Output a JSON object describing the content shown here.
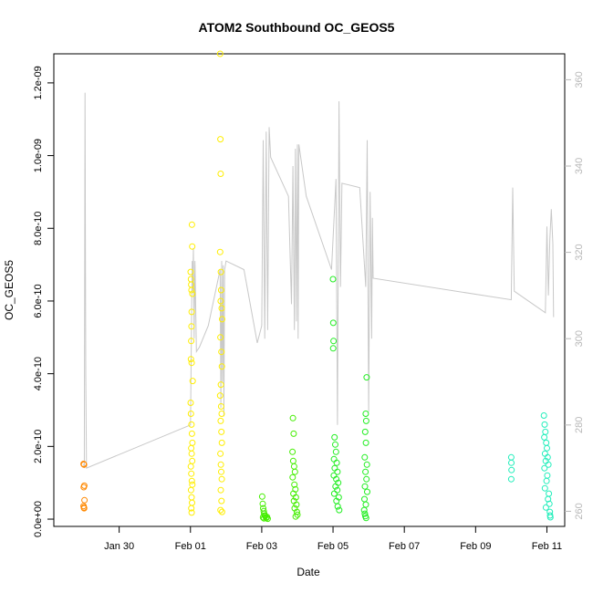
{
  "chart_data": {
    "type": "scatter",
    "title": "ATOM2 Southbound OC_GEOS5",
    "xlabel": "Date",
    "ylabel": "OC_GEOS5",
    "xlim": [
      "2018-01-28T04:00",
      "2018-02-11T12:00"
    ],
    "ylim": [
      -2e-11,
      1.28e-09
    ],
    "y2lim": [
      256.5,
      366
    ],
    "x_ticks": [
      {
        "label": "Jan 30",
        "value": "2018-01-30T00:00"
      },
      {
        "label": "Feb 01",
        "value": "2018-02-01T00:00"
      },
      {
        "label": "Feb 03",
        "value": "2018-02-03T00:00"
      },
      {
        "label": "Feb 05",
        "value": "2018-02-05T00:00"
      },
      {
        "label": "Feb 07",
        "value": "2018-02-07T00:00"
      },
      {
        "label": "Feb 09",
        "value": "2018-02-09T00:00"
      },
      {
        "label": "Feb 11",
        "value": "2018-02-11T00:00"
      }
    ],
    "y_ticks": [
      {
        "label": "0.0e+00",
        "value": 0
      },
      {
        "label": "2.0e-10",
        "value": 2e-10
      },
      {
        "label": "4.0e-10",
        "value": 4e-10
      },
      {
        "label": "6.0e-10",
        "value": 6e-10
      },
      {
        "label": "8.0e-10",
        "value": 8e-10
      },
      {
        "label": "1.0e-09",
        "value": 1e-09
      },
      {
        "label": "1.2e-09",
        "value": 1.2e-09
      }
    ],
    "y2_ticks": [
      {
        "label": "260",
        "value": 260
      },
      {
        "label": "280",
        "value": 280
      },
      {
        "label": "300",
        "value": 300
      },
      {
        "label": "320",
        "value": 320
      },
      {
        "label": "340",
        "value": 340
      },
      {
        "label": "360",
        "value": 360
      }
    ],
    "grid": false,
    "line_color": "#c8c8c8",
    "line_series": [
      [
        "2018-01-29T00:00",
        271
      ],
      [
        "2018-01-29T00:30",
        270
      ],
      [
        "2018-01-29T01:00",
        357
      ],
      [
        "2018-01-29T01:30",
        292
      ],
      [
        "2018-01-29T02:00",
        270
      ],
      [
        "2018-02-01T00:00",
        280
      ],
      [
        "2018-02-01T00:45",
        305
      ],
      [
        "2018-02-01T01:10",
        318
      ],
      [
        "2018-02-01T01:30",
        311
      ],
      [
        "2018-02-01T02:00",
        321
      ],
      [
        "2018-02-01T02:30",
        300
      ],
      [
        "2018-02-01T03:00",
        318
      ],
      [
        "2018-02-01T04:00",
        297
      ],
      [
        "2018-02-01T06:00",
        298
      ],
      [
        "2018-02-01T12:00",
        303
      ],
      [
        "2018-02-01T20:00",
        316
      ],
      [
        "2018-02-01T20:30",
        284
      ],
      [
        "2018-02-01T21:00",
        318
      ],
      [
        "2018-02-01T21:30",
        290
      ],
      [
        "2018-02-01T22:00",
        317
      ],
      [
        "2018-02-01T22:30",
        282
      ],
      [
        "2018-02-01T23:00",
        316
      ],
      [
        "2018-02-02T00:00",
        318
      ],
      [
        "2018-02-02T12:00",
        316
      ],
      [
        "2018-02-02T21:00",
        299
      ],
      [
        "2018-02-03T00:00",
        303
      ],
      [
        "2018-02-03T01:00",
        346
      ],
      [
        "2018-02-03T02:00",
        300
      ],
      [
        "2018-02-03T03:00",
        348
      ],
      [
        "2018-02-03T04:00",
        302
      ],
      [
        "2018-02-03T05:00",
        349
      ],
      [
        "2018-02-03T06:00",
        342
      ],
      [
        "2018-02-03T18:00",
        333
      ],
      [
        "2018-02-03T20:00",
        308
      ],
      [
        "2018-02-03T21:00",
        340
      ],
      [
        "2018-02-03T22:00",
        302
      ],
      [
        "2018-02-03T22:40",
        344
      ],
      [
        "2018-02-03T23:20",
        304
      ],
      [
        "2018-02-04T00:00",
        345
      ],
      [
        "2018-02-04T00:30",
        300
      ],
      [
        "2018-02-04T01:00",
        345
      ],
      [
        "2018-02-04T06:00",
        333
      ],
      [
        "2018-02-04T23:00",
        316
      ],
      [
        "2018-02-05T02:00",
        337
      ],
      [
        "2018-02-05T03:00",
        280
      ],
      [
        "2018-02-05T04:00",
        355
      ],
      [
        "2018-02-05T05:00",
        312
      ],
      [
        "2018-02-05T06:00",
        336
      ],
      [
        "2018-02-05T18:00",
        335
      ],
      [
        "2018-02-05T22:00",
        312
      ],
      [
        "2018-02-05T23:00",
        346
      ],
      [
        "2018-02-06T00:00",
        283
      ],
      [
        "2018-02-06T01:00",
        334
      ],
      [
        "2018-02-06T02:00",
        300
      ],
      [
        "2018-02-06T02:30",
        328
      ],
      [
        "2018-02-06T03:00",
        314
      ],
      [
        "2018-02-10T00:00",
        309
      ],
      [
        "2018-02-10T01:00",
        335
      ],
      [
        "2018-02-10T02:00",
        311
      ],
      [
        "2018-02-10T23:00",
        306
      ],
      [
        "2018-02-11T00:00",
        326
      ],
      [
        "2018-02-11T01:00",
        310
      ],
      [
        "2018-02-11T02:00",
        323
      ],
      [
        "2018-02-11T03:00",
        330
      ],
      [
        "2018-02-11T04:00",
        322
      ],
      [
        "2018-02-11T04:30",
        305
      ]
    ],
    "series": [
      {
        "color": "#ff8800",
        "points": [
          [
            "2018-01-29T00:00",
            1.52e-10
          ],
          [
            "2018-01-29T00:20",
            1.5e-10
          ],
          [
            "2018-01-29T00:30",
            9.2e-11
          ],
          [
            "2018-01-29T00:10",
            8.8e-11
          ],
          [
            "2018-01-29T00:40",
            5.2e-11
          ],
          [
            "2018-01-29T00:00",
            3.6e-11
          ],
          [
            "2018-01-29T00:15",
            3.2e-11
          ],
          [
            "2018-01-29T00:25",
            3e-11
          ]
        ]
      },
      {
        "color": "#ffee00",
        "points": [
          [
            "2018-02-01T00:10",
            6.8e-10
          ],
          [
            "2018-02-01T00:20",
            6.6e-10
          ],
          [
            "2018-02-01T00:30",
            6.45e-10
          ],
          [
            "2018-02-01T00:40",
            6.3e-10
          ],
          [
            "2018-02-01T01:00",
            8.1e-10
          ],
          [
            "2018-02-01T01:10",
            7.5e-10
          ],
          [
            "2018-02-01T01:20",
            6.2e-10
          ],
          [
            "2018-02-01T00:50",
            5.7e-10
          ],
          [
            "2018-02-01T00:40",
            5.3e-10
          ],
          [
            "2018-02-01T00:30",
            4.9e-10
          ],
          [
            "2018-02-01T00:20",
            4.4e-10
          ],
          [
            "2018-02-01T00:50",
            4.3e-10
          ],
          [
            "2018-02-01T01:30",
            3.8e-10
          ],
          [
            "2018-02-01T00:10",
            3.2e-10
          ],
          [
            "2018-02-01T00:20",
            2.9e-10
          ],
          [
            "2018-02-01T00:40",
            2.6e-10
          ],
          [
            "2018-02-01T01:00",
            2.35e-10
          ],
          [
            "2018-02-01T01:20",
            2.1e-10
          ],
          [
            "2018-02-01T00:30",
            1.95e-10
          ],
          [
            "2018-02-01T00:50",
            1.8e-10
          ],
          [
            "2018-02-01T01:10",
            1.6e-10
          ],
          [
            "2018-02-01T00:15",
            1.45e-10
          ],
          [
            "2018-02-01T00:35",
            1.25e-10
          ],
          [
            "2018-02-01T00:55",
            1.05e-10
          ],
          [
            "2018-02-01T01:15",
            9.5e-11
          ],
          [
            "2018-02-01T00:25",
            8e-11
          ],
          [
            "2018-02-01T00:45",
            6e-11
          ],
          [
            "2018-02-01T01:05",
            4.5e-11
          ],
          [
            "2018-02-01T00:35",
            3e-11
          ],
          [
            "2018-02-01T00:50",
            1.8e-11
          ],
          [
            "2018-02-01T20:00",
            1.28e-09
          ],
          [
            "2018-02-01T20:10",
            1.045e-09
          ],
          [
            "2018-02-01T20:20",
            9.5e-10
          ],
          [
            "2018-02-01T20:00",
            7.35e-10
          ],
          [
            "2018-02-01T20:30",
            6.8e-10
          ],
          [
            "2018-02-01T20:40",
            6.3e-10
          ],
          [
            "2018-02-01T20:20",
            6e-10
          ],
          [
            "2018-02-01T21:00",
            5.8e-10
          ],
          [
            "2018-02-01T21:20",
            5.5e-10
          ],
          [
            "2018-02-01T20:10",
            5e-10
          ],
          [
            "2018-02-01T20:50",
            4.6e-10
          ],
          [
            "2018-02-01T21:10",
            4.2e-10
          ],
          [
            "2018-02-01T20:30",
            3.7e-10
          ],
          [
            "2018-02-01T20:00",
            3.4e-10
          ],
          [
            "2018-02-01T20:40",
            3.1e-10
          ],
          [
            "2018-02-01T21:00",
            2.9e-10
          ],
          [
            "2018-02-01T20:20",
            2.7e-10
          ],
          [
            "2018-02-01T20:50",
            2.4e-10
          ],
          [
            "2018-02-01T21:10",
            2.1e-10
          ],
          [
            "2018-02-01T20:10",
            1.8e-10
          ],
          [
            "2018-02-01T20:30",
            1.5e-10
          ],
          [
            "2018-02-01T20:45",
            1.3e-10
          ],
          [
            "2018-02-01T21:05",
            1.1e-10
          ],
          [
            "2018-02-01T20:25",
            8e-11
          ],
          [
            "2018-02-01T20:55",
            5e-11
          ],
          [
            "2018-02-01T20:15",
            2.5e-11
          ],
          [
            "2018-02-01T21:15",
            2e-11
          ]
        ]
      },
      {
        "color": "#44ee00",
        "points": [
          [
            "2018-02-03T00:20",
            6.2e-11
          ],
          [
            "2018-02-03T00:40",
            4.2e-11
          ],
          [
            "2018-02-03T01:00",
            3e-11
          ],
          [
            "2018-02-03T01:20",
            2.2e-11
          ],
          [
            "2018-02-03T01:40",
            1.5e-11
          ],
          [
            "2018-02-03T02:00",
            1e-11
          ],
          [
            "2018-02-03T00:50",
            5e-12
          ],
          [
            "2018-02-03T01:30",
            2e-12
          ],
          [
            "2018-02-03T02:20",
            8e-12
          ],
          [
            "2018-02-03T03:00",
            3e-12
          ],
          [
            "2018-02-03T03:30",
            6e-12
          ],
          [
            "2018-02-03T04:00",
            1e-12
          ],
          [
            "2018-02-03T21:00",
            2.78e-10
          ],
          [
            "2018-02-03T21:30",
            2.35e-10
          ],
          [
            "2018-02-03T20:40",
            1.85e-10
          ],
          [
            "2018-02-03T21:10",
            1.6e-10
          ],
          [
            "2018-02-03T21:50",
            1.45e-10
          ],
          [
            "2018-02-03T22:20",
            1.3e-10
          ],
          [
            "2018-02-03T20:50",
            1.15e-10
          ],
          [
            "2018-02-03T22:00",
            9.5e-11
          ],
          [
            "2018-02-03T22:40",
            8.2e-11
          ],
          [
            "2018-02-03T21:20",
            7e-11
          ],
          [
            "2018-02-03T23:00",
            6e-11
          ],
          [
            "2018-02-03T21:40",
            5e-11
          ],
          [
            "2018-02-03T23:20",
            4e-11
          ],
          [
            "2018-02-03T22:10",
            3e-11
          ],
          [
            "2018-02-03T23:40",
            2e-11
          ],
          [
            "2018-02-04T00:00",
            1.2e-11
          ],
          [
            "2018-02-03T22:50",
            7e-12
          ]
        ]
      },
      {
        "color": "#22ee22",
        "points": [
          [
            "2018-02-05T00:00",
            6.6e-10
          ],
          [
            "2018-02-05T00:10",
            5.4e-10
          ],
          [
            "2018-02-05T00:20",
            4.9e-10
          ],
          [
            "2018-02-05T00:05",
            4.7e-10
          ],
          [
            "2018-02-05T01:00",
            2.25e-10
          ],
          [
            "2018-02-05T01:30",
            2.05e-10
          ],
          [
            "2018-02-05T02:00",
            1.85e-10
          ],
          [
            "2018-02-05T00:40",
            1.65e-10
          ],
          [
            "2018-02-05T02:30",
            1.55e-10
          ],
          [
            "2018-02-05T01:10",
            1.4e-10
          ],
          [
            "2018-02-05T03:00",
            1.3e-10
          ],
          [
            "2018-02-05T00:30",
            1.2e-10
          ],
          [
            "2018-02-05T02:10",
            1.1e-10
          ],
          [
            "2018-02-05T03:30",
            1e-10
          ],
          [
            "2018-02-05T01:40",
            9e-11
          ],
          [
            "2018-02-05T02:50",
            8e-11
          ],
          [
            "2018-02-05T00:50",
            7e-11
          ],
          [
            "2018-02-05T03:50",
            6e-11
          ],
          [
            "2018-02-05T02:20",
            5e-11
          ],
          [
            "2018-02-05T03:10",
            3.5e-11
          ],
          [
            "2018-02-05T04:10",
            2.5e-11
          ],
          [
            "2018-02-05T22:40",
            3.9e-10
          ],
          [
            "2018-02-05T22:00",
            2.9e-10
          ],
          [
            "2018-02-05T22:20",
            2.7e-10
          ],
          [
            "2018-02-05T21:40",
            2.4e-10
          ],
          [
            "2018-02-05T22:10",
            2.1e-10
          ],
          [
            "2018-02-05T21:20",
            1.7e-10
          ],
          [
            "2018-02-05T22:50",
            1.5e-10
          ],
          [
            "2018-02-05T21:50",
            1.3e-10
          ],
          [
            "2018-02-05T22:30",
            1.1e-10
          ],
          [
            "2018-02-05T21:30",
            9e-11
          ],
          [
            "2018-02-05T23:00",
            7.5e-11
          ],
          [
            "2018-02-05T21:10",
            5.5e-11
          ],
          [
            "2018-02-05T22:05",
            4e-11
          ],
          [
            "2018-02-05T21:00",
            2.5e-11
          ],
          [
            "2018-02-05T21:25",
            1.5e-11
          ],
          [
            "2018-02-05T21:45",
            8e-12
          ],
          [
            "2018-02-05T22:15",
            3e-12
          ]
        ]
      },
      {
        "color": "#22eebb",
        "points": [
          [
            "2018-02-10T00:00",
            1.7e-10
          ],
          [
            "2018-02-10T00:05",
            1.55e-10
          ],
          [
            "2018-02-10T00:10",
            1.35e-10
          ],
          [
            "2018-02-10T00:00",
            1.1e-10
          ],
          [
            "2018-02-10T22:00",
            2.85e-10
          ],
          [
            "2018-02-10T22:30",
            2.6e-10
          ],
          [
            "2018-02-10T23:00",
            2.4e-10
          ],
          [
            "2018-02-10T22:15",
            2.25e-10
          ],
          [
            "2018-02-10T23:30",
            2.1e-10
          ],
          [
            "2018-02-11T00:00",
            1.95e-10
          ],
          [
            "2018-02-10T22:45",
            1.8e-10
          ],
          [
            "2018-02-11T00:30",
            1.7e-10
          ],
          [
            "2018-02-10T23:15",
            1.6e-10
          ],
          [
            "2018-02-11T01:00",
            1.5e-10
          ],
          [
            "2018-02-10T22:20",
            1.4e-10
          ],
          [
            "2018-02-11T00:15",
            1.2e-10
          ],
          [
            "2018-02-10T23:45",
            1.05e-10
          ],
          [
            "2018-02-10T22:40",
            8.5e-11
          ],
          [
            "2018-02-11T01:20",
            7e-11
          ],
          [
            "2018-02-11T00:45",
            5.5e-11
          ],
          [
            "2018-02-11T01:40",
            4.2e-11
          ],
          [
            "2018-02-10T23:20",
            3.2e-11
          ],
          [
            "2018-02-11T02:00",
            2e-11
          ],
          [
            "2018-02-11T02:10",
            1e-11
          ],
          [
            "2018-02-11T02:20",
            5e-12
          ]
        ]
      }
    ]
  }
}
